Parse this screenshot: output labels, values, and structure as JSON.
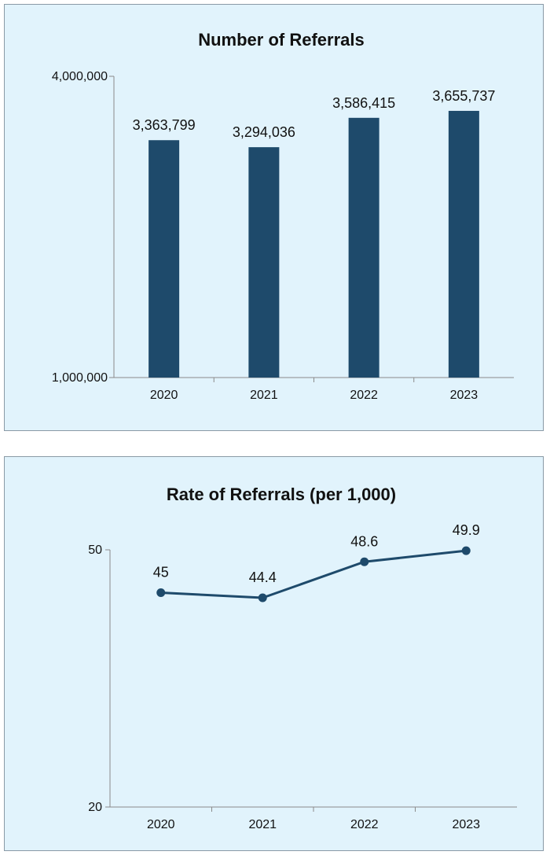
{
  "chart_data": [
    {
      "type": "bar",
      "title": "Number of Referrals",
      "categories": [
        "2020",
        "2021",
        "2022",
        "2023"
      ],
      "values": [
        3363799,
        3294036,
        3586415,
        3655737
      ],
      "value_labels": [
        "3,363,799",
        "3,294,036",
        "3,586,415",
        "3,655,737"
      ],
      "ylim": [
        1000000,
        4000000
      ],
      "y_ticks": [
        1000000,
        4000000
      ],
      "y_tick_labels": [
        "1,000,000",
        "4,000,000"
      ],
      "grid": false,
      "legend": "none",
      "bar_color": "#1e4a6b"
    },
    {
      "type": "line",
      "title": "Rate of Referrals (per 1,000)",
      "categories": [
        "2020",
        "2021",
        "2022",
        "2023"
      ],
      "values": [
        45,
        44.4,
        48.6,
        49.9
      ],
      "value_labels": [
        "45",
        "44.4",
        "48.6",
        "49.9"
      ],
      "ylim": [
        20,
        50
      ],
      "y_ticks": [
        20,
        50
      ],
      "y_tick_labels": [
        "20",
        "50"
      ],
      "grid": false,
      "legend": "none",
      "line_color": "#1e4a6b"
    }
  ],
  "colors": {
    "panel_background": "#e1f3fc",
    "series": "#1e4a6b"
  }
}
